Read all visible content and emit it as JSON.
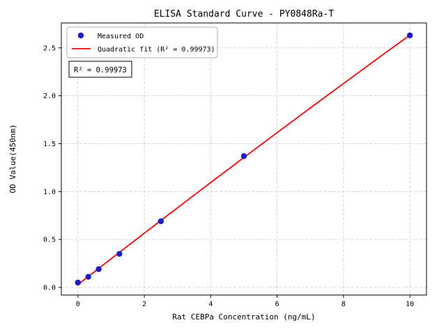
{
  "figure": {
    "title": "ELISA Standard Curve - PY0848Ra-T"
  },
  "chart_data": {
    "type": "scatter",
    "title": "ELISA Standard Curve - PY0848Ra-T",
    "xlabel": "Rat CEBPa Concentration (ng/mL)",
    "ylabel": "OD Value(450nm)",
    "xlim": [
      -0.5,
      10.5
    ],
    "ylim": [
      -0.08,
      2.76
    ],
    "x_ticks": [
      0,
      2,
      4,
      6,
      8,
      10
    ],
    "x_tick_labels": [
      "0",
      "2",
      "4",
      "6",
      "8",
      "10"
    ],
    "y_ticks": [
      0,
      0.5,
      1,
      1.5,
      2,
      2.5
    ],
    "y_tick_labels": [
      "0.0",
      "0.5",
      "1.0",
      "1.5",
      "2.0",
      "2.5"
    ],
    "grid": true,
    "grid_style": "dashed",
    "legend_position": "upper-left",
    "series": [
      {
        "name": "Measured OD",
        "type": "scatter",
        "color": "#1a1ad1",
        "x": [
          0,
          0.3125,
          0.625,
          1.25,
          2.5,
          5,
          10
        ],
        "y": [
          0.05,
          0.11,
          0.19,
          0.35,
          0.69,
          1.37,
          2.63
        ]
      },
      {
        "name": "Quadratic fit (R² = 0.99973)",
        "type": "line",
        "fit": "quadratic",
        "color": "#ff0000",
        "x_range": [
          0,
          10
        ]
      }
    ],
    "annotation": "R² = 0.99973",
    "colors": {
      "grid": "#c9c9c9",
      "frame": "#000000",
      "background": "#ffffff"
    }
  }
}
